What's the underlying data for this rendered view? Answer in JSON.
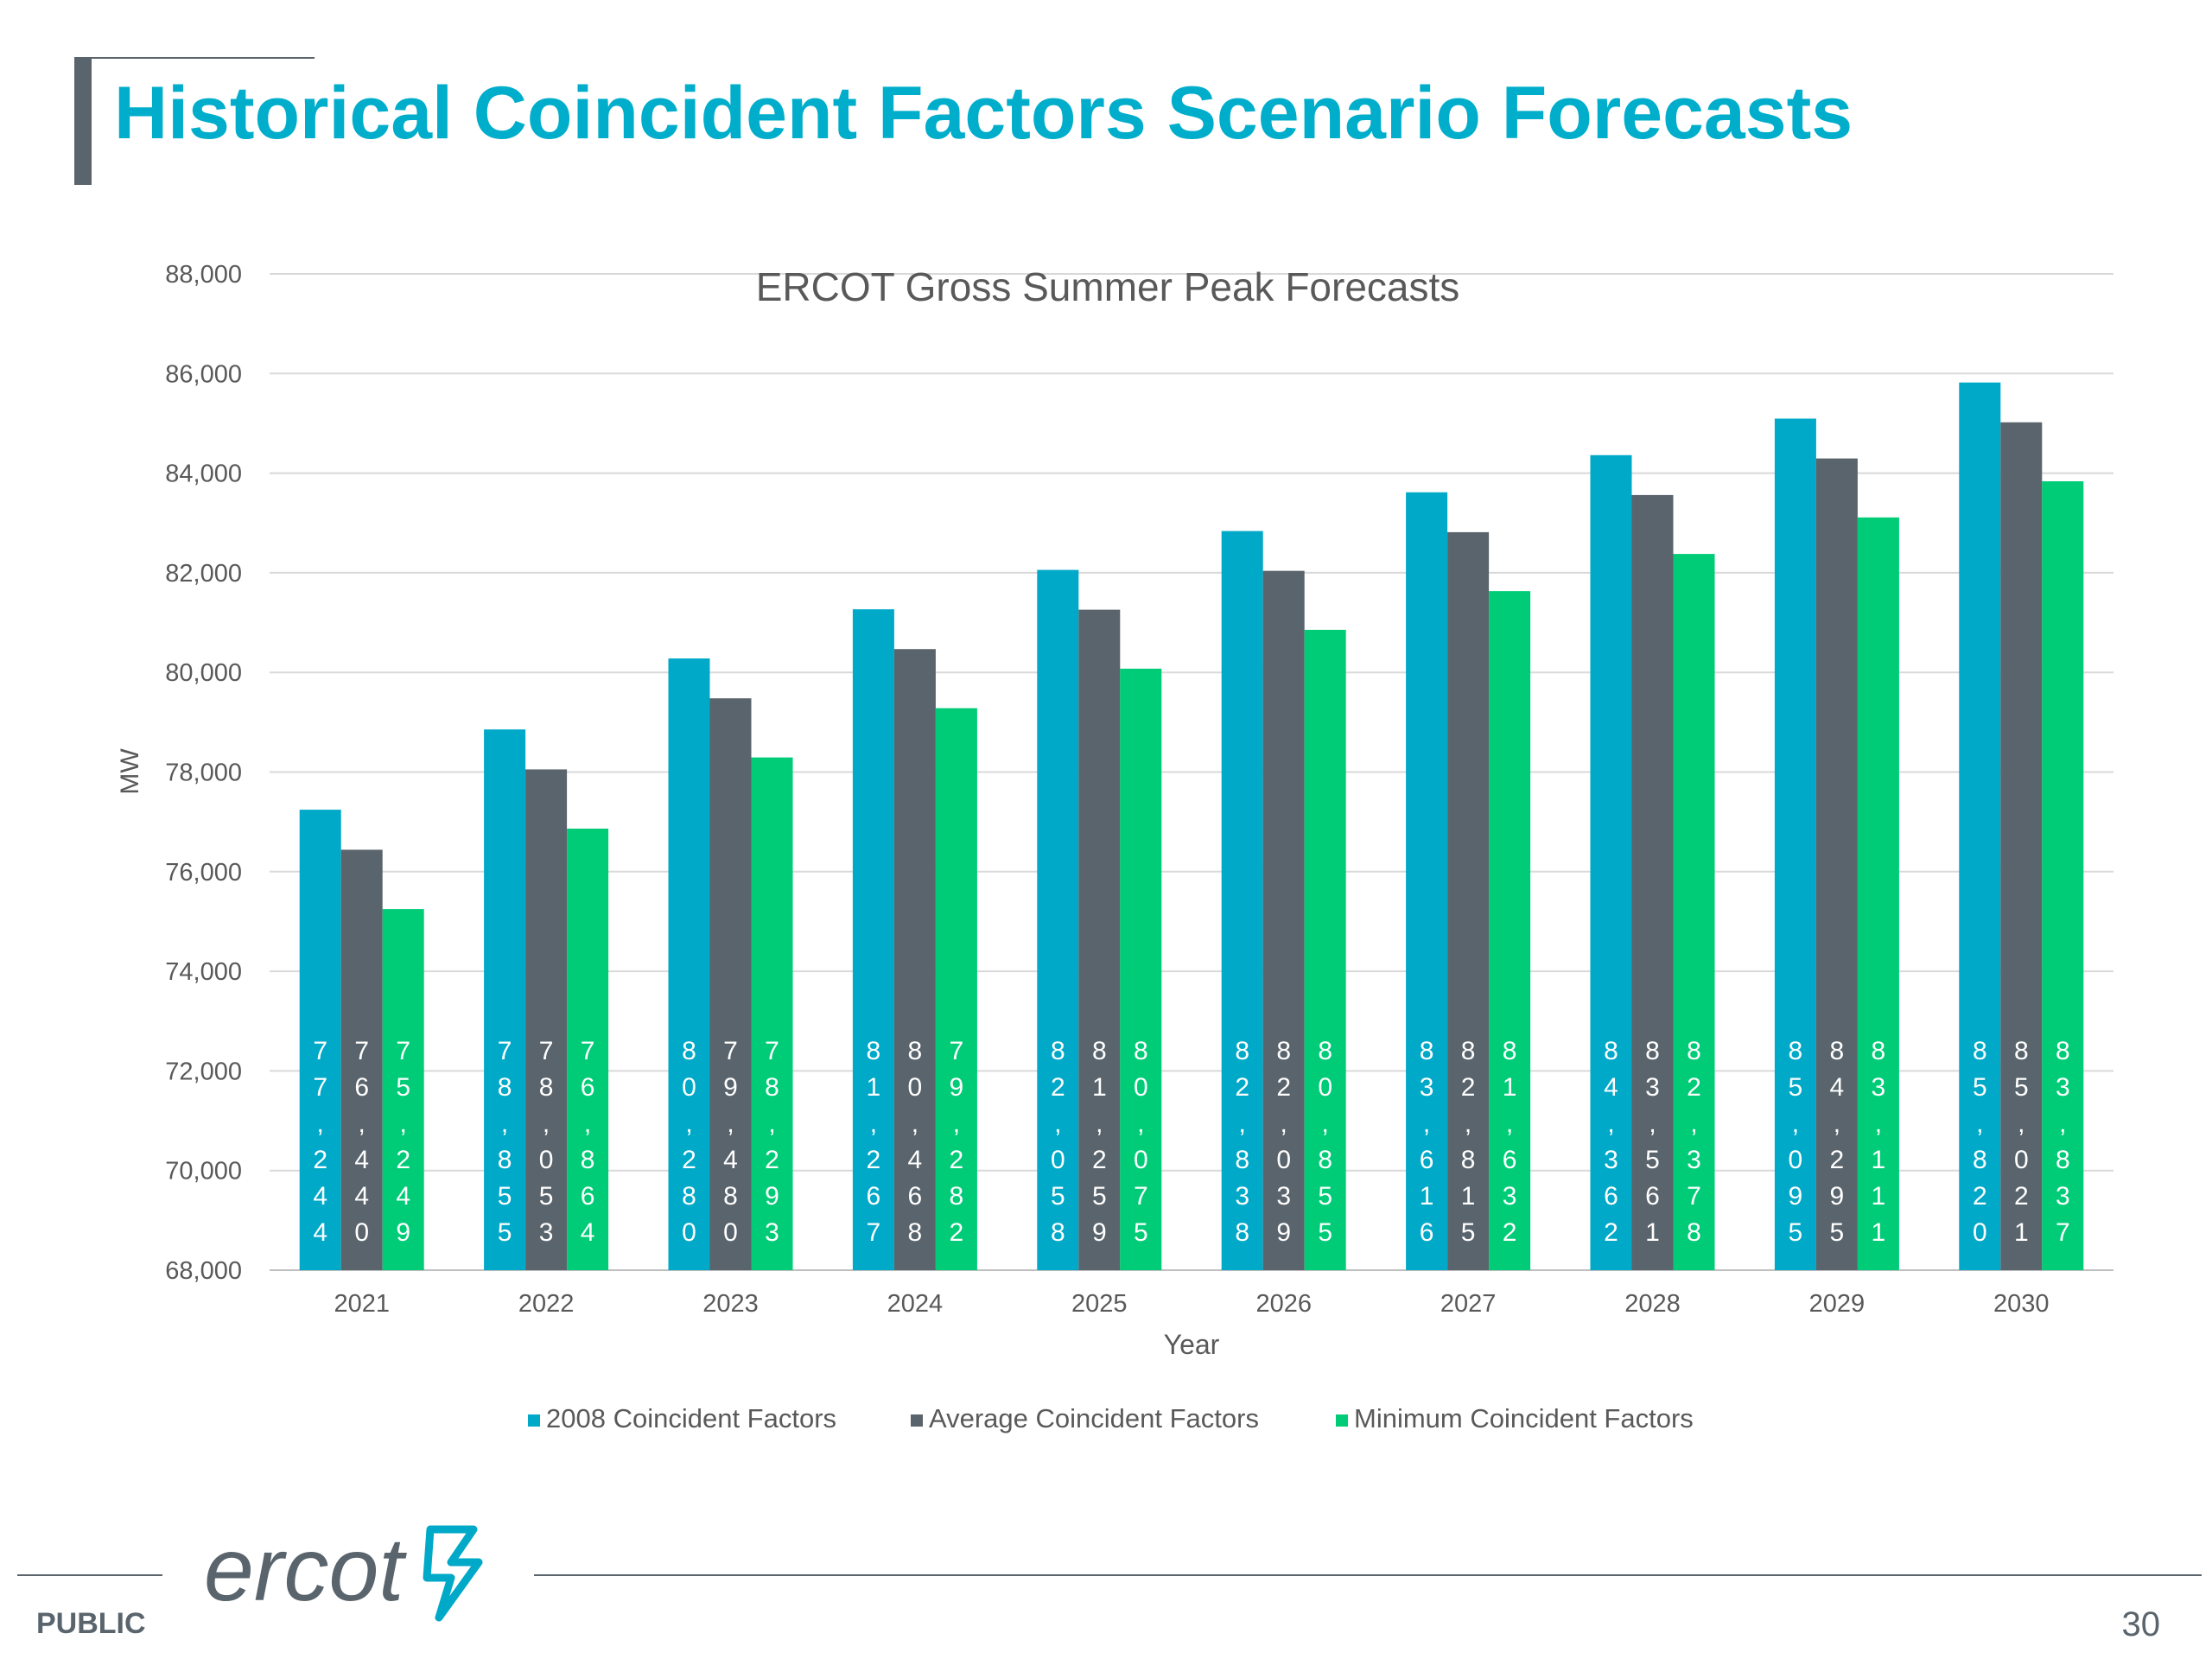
{
  "slide": {
    "title": "Historical Coincident Factors Scenario Forecasts",
    "footer_label": "PUBLIC",
    "page_number": "30",
    "logo_text": "ercot"
  },
  "colors": {
    "title": "#00aecb",
    "series_2008": "#00a9c8",
    "series_average": "#5a646c",
    "series_minimum": "#00cc77",
    "gridline": "#d9d9d9",
    "axis_text": "#595959"
  },
  "chart_data": {
    "type": "bar",
    "title": "ERCOT Gross Summer Peak Forecasts",
    "xlabel": "Year",
    "ylabel": "MW",
    "ylim": [
      68000,
      88000
    ],
    "yticks": [
      68000,
      70000,
      72000,
      74000,
      76000,
      78000,
      80000,
      82000,
      84000,
      86000,
      88000
    ],
    "ytick_labels": [
      "68,000",
      "70,000",
      "72,000",
      "74,000",
      "76,000",
      "78,000",
      "80,000",
      "82,000",
      "84,000",
      "86,000",
      "88,000"
    ],
    "grid": true,
    "legend_position": "bottom",
    "categories": [
      "2021",
      "2022",
      "2023",
      "2024",
      "2025",
      "2026",
      "2027",
      "2028",
      "2029",
      "2030"
    ],
    "series": [
      {
        "name": "2008 Coincident Factors",
        "values": [
          77244,
          78855,
          80280,
          81267,
          82058,
          82838,
          83616,
          84362,
          85095,
          85820
        ],
        "labels": [
          "77,244",
          "78,855",
          "80,280",
          "81,267",
          "82,058",
          "82,838",
          "83,616",
          "84,362",
          "85,095",
          "85,820"
        ]
      },
      {
        "name": "Average Coincident Factors",
        "values": [
          76440,
          78053,
          79480,
          80468,
          81259,
          82039,
          82815,
          83561,
          84295,
          85021
        ],
        "labels": [
          "76,440",
          "78,053",
          "79,480",
          "80,468",
          "81,259",
          "82,039",
          "82,815",
          "83,561",
          "84,295",
          "85,021"
        ]
      },
      {
        "name": "Minimum Coincident Factors",
        "values": [
          75249,
          76864,
          78293,
          79282,
          80075,
          80855,
          81632,
          82378,
          83111,
          83837
        ],
        "labels": [
          "75,249",
          "76,864",
          "78,293",
          "79,282",
          "80,075",
          "80,855",
          "81,632",
          "82,378",
          "83,111",
          "83,837"
        ]
      }
    ]
  }
}
